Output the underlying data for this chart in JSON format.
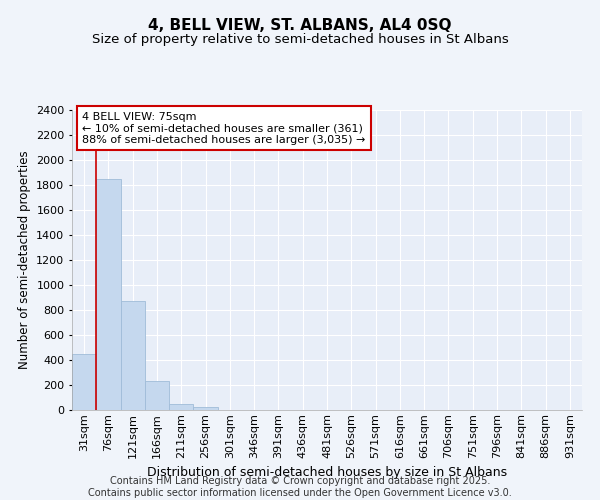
{
  "title": "4, BELL VIEW, ST. ALBANS, AL4 0SQ",
  "subtitle": "Size of property relative to semi-detached houses in St Albans",
  "xlabel": "Distribution of semi-detached houses by size in St Albans",
  "ylabel": "Number of semi-detached properties",
  "categories": [
    "31sqm",
    "76sqm",
    "121sqm",
    "166sqm",
    "211sqm",
    "256sqm",
    "301sqm",
    "346sqm",
    "391sqm",
    "436sqm",
    "481sqm",
    "526sqm",
    "571sqm",
    "616sqm",
    "661sqm",
    "706sqm",
    "751sqm",
    "796sqm",
    "841sqm",
    "886sqm",
    "931sqm"
  ],
  "values": [
    450,
    1850,
    870,
    235,
    50,
    25,
    0,
    0,
    0,
    0,
    0,
    0,
    0,
    0,
    0,
    0,
    0,
    0,
    0,
    0,
    0
  ],
  "bar_color": "#c5d8ee",
  "bar_edge_color": "#a0bcd8",
  "vline_x": 0.5,
  "vline_color": "#cc0000",
  "annotation_text": "4 BELL VIEW: 75sqm\n← 10% of semi-detached houses are smaller (361)\n88% of semi-detached houses are larger (3,035) →",
  "annotation_box_color": "#ffffff",
  "annotation_box_edge": "#cc0000",
  "ylim": [
    0,
    2400
  ],
  "yticks": [
    0,
    200,
    400,
    600,
    800,
    1000,
    1200,
    1400,
    1600,
    1800,
    2000,
    2200,
    2400
  ],
  "bg_color": "#f0f4fa",
  "plot_bg_color": "#e8eef8",
  "footer_text": "Contains HM Land Registry data © Crown copyright and database right 2025.\nContains public sector information licensed under the Open Government Licence v3.0.",
  "title_fontsize": 11,
  "subtitle_fontsize": 9.5,
  "xlabel_fontsize": 9,
  "ylabel_fontsize": 8.5,
  "tick_fontsize": 8,
  "footer_fontsize": 7,
  "annot_fontsize": 8
}
